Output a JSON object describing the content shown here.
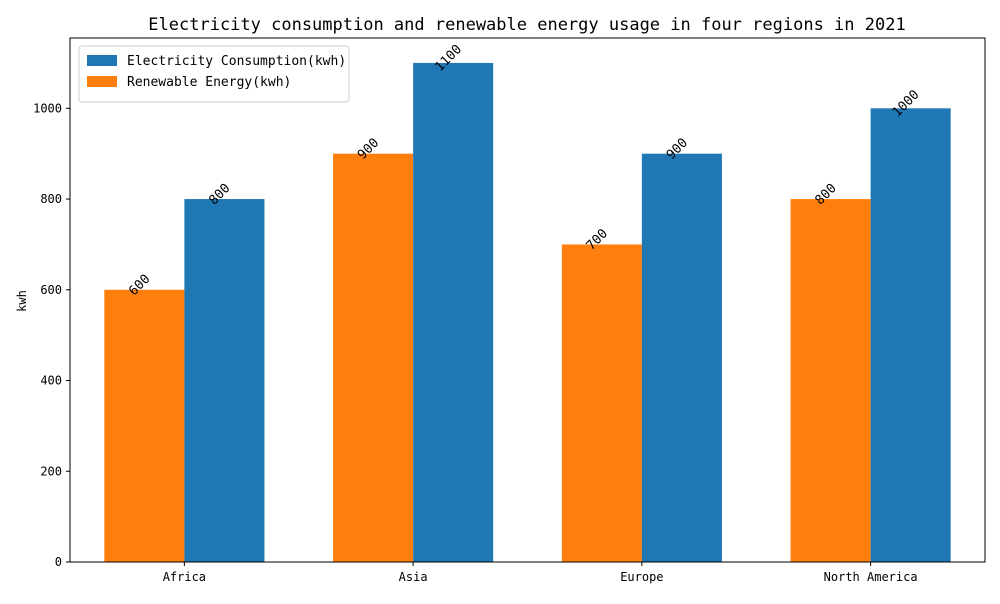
{
  "chart_data": {
    "type": "bar",
    "title": "Electricity consumption and renewable energy usage in four regions in 2021",
    "xlabel": "",
    "ylabel": "kwh",
    "categories": [
      "Africa",
      "Asia",
      "Europe",
      "North America"
    ],
    "series": [
      {
        "name": "Renewable Energy(kwh)",
        "values": [
          600,
          900,
          700,
          800
        ],
        "color": "#ff7f0e"
      },
      {
        "name": "Electricity Consumption(kwh)",
        "values": [
          800,
          1100,
          900,
          1000
        ],
        "color": "#1f77b4"
      }
    ],
    "ylim": [
      0,
      1155
    ],
    "yticks": [
      0,
      200,
      400,
      600,
      800,
      1000
    ],
    "legend": {
      "placement": "top-left",
      "entries": [
        "Electricity Consumption(kwh)",
        "Renewable Energy(kwh)"
      ]
    },
    "grid": false
  }
}
